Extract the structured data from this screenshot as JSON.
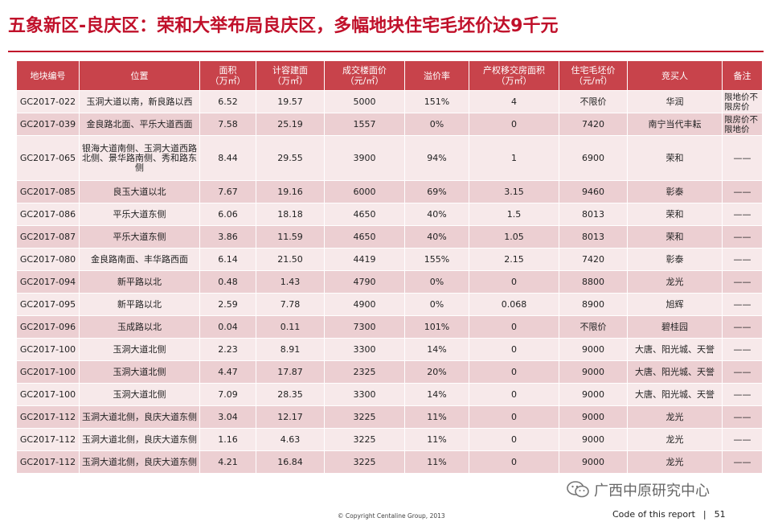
{
  "title": "五象新区-良庆区：荣和大举布局良庆区，多幅地块住宅毛坯价达9千元",
  "table": {
    "headers": [
      "地块编号",
      "位置",
      "面积\n（万㎡）",
      "计容建面\n（万㎡）",
      "成交楼面价\n（元/㎡）",
      "溢价率",
      "产权移交房面积\n（万㎡）",
      "住宅毛坯价\n（元/㎡）",
      "竞买人",
      "备注"
    ],
    "rows": [
      [
        "GC2017-022",
        "玉洞大道以南，新良路以西",
        "6.52",
        "19.57",
        "5000",
        "151%",
        "4",
        "不限价",
        "华润",
        "限地价不限房价"
      ],
      [
        "GC2017-039",
        "金良路北面、平乐大道西面",
        "7.58",
        "25.19",
        "1557",
        "0%",
        "0",
        "7420",
        "南宁当代丰耘",
        "限房价不限地价"
      ],
      [
        "GC2017-065",
        "银海大道南侧、玉洞大道西路北侧、景华路南侧、秀和路东侧",
        "8.44",
        "29.55",
        "3900",
        "94%",
        "1",
        "6900",
        "荣和",
        "——"
      ],
      [
        "GC2017-085",
        "良玉大道以北",
        "7.67",
        "19.16",
        "6000",
        "69%",
        "3.15",
        "9460",
        "彰泰",
        "——"
      ],
      [
        "GC2017-086",
        "平乐大道东侧",
        "6.06",
        "18.18",
        "4650",
        "40%",
        "1.5",
        "8013",
        "荣和",
        "——"
      ],
      [
        "GC2017-087",
        "平乐大道东侧",
        "3.86",
        "11.59",
        "4650",
        "40%",
        "1.05",
        "8013",
        "荣和",
        "——"
      ],
      [
        "GC2017-080",
        "金良路南面、丰华路西面",
        "6.14",
        "21.50",
        "4419",
        "155%",
        "2.15",
        "7420",
        "彰泰",
        "——"
      ],
      [
        "GC2017-094",
        "新平路以北",
        "0.48",
        "1.43",
        "4790",
        "0%",
        "0",
        "8800",
        "龙光",
        "——"
      ],
      [
        "GC2017-095",
        "新平路以北",
        "2.59",
        "7.78",
        "4900",
        "0%",
        "0.068",
        "8900",
        "旭辉",
        "——"
      ],
      [
        "GC2017-096",
        "玉成路以北",
        "0.04",
        "0.11",
        "7300",
        "101%",
        "0",
        "不限价",
        "碧桂园",
        "——"
      ],
      [
        "GC2017-100",
        "玉洞大道北侧",
        "2.23",
        "8.91",
        "3300",
        "14%",
        "0",
        "9000",
        "大唐、阳光城、天誉",
        "——"
      ],
      [
        "GC2017-100",
        "玉洞大道北侧",
        "4.47",
        "17.87",
        "2325",
        "20%",
        "0",
        "9000",
        "大唐、阳光城、天誉",
        "——"
      ],
      [
        "GC2017-100",
        "玉洞大道北侧",
        "7.09",
        "28.35",
        "3300",
        "14%",
        "0",
        "9000",
        "大唐、阳光城、天誉",
        "——"
      ],
      [
        "GC2017-112",
        "玉洞大道北侧，良庆大道东侧",
        "3.04",
        "12.17",
        "3225",
        "11%",
        "0",
        "9000",
        "龙光",
        "——"
      ],
      [
        "GC2017-112",
        "玉洞大道北侧，良庆大道东侧",
        "1.16",
        "4.63",
        "3225",
        "11%",
        "0",
        "9000",
        "龙光",
        "——"
      ],
      [
        "GC2017-112",
        "玉洞大道北侧，良庆大道东侧",
        "4.21",
        "16.84",
        "3225",
        "11%",
        "0",
        "9000",
        "龙光",
        "——"
      ]
    ]
  },
  "watermark": {
    "text": "广西中原研究中心",
    "icon": "wechat-icon"
  },
  "footer": {
    "copyright": "© Copyright  Centaline Group, 2013",
    "code_label": "Code of this report",
    "separator": "|",
    "page": "51"
  },
  "colors": {
    "accent": "#c0102a",
    "header_bg": "#c8434b",
    "row_light": "#f7e9ea",
    "row_dark": "#eccfd2"
  }
}
